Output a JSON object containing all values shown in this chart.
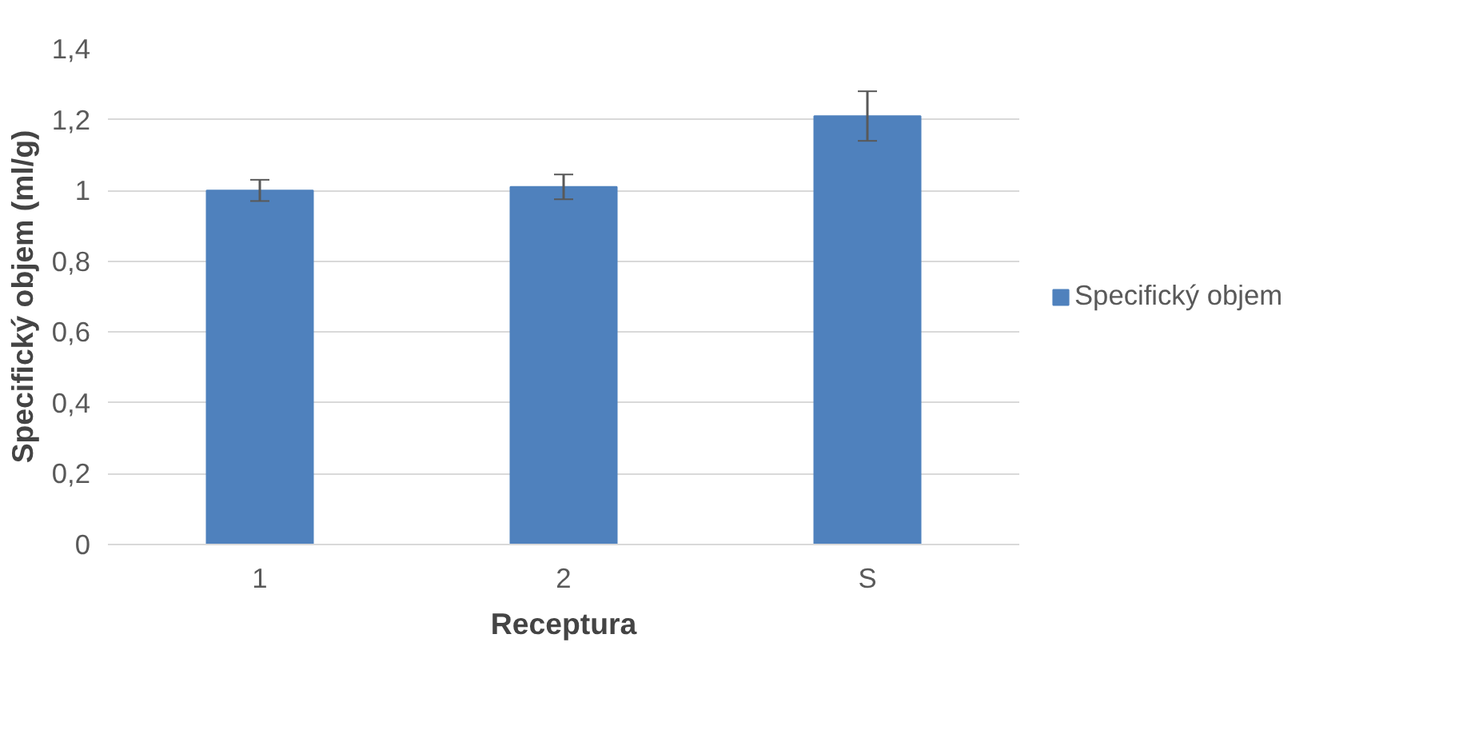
{
  "chart_data": {
    "type": "bar",
    "xlabel": "Receptura",
    "ylabel": "Specifický objem (ml/g)",
    "categories": [
      "1",
      "2",
      "S"
    ],
    "series": [
      {
        "name": "Specifický objem",
        "color": "#4f81bd",
        "values": [
          1.0,
          1.01,
          1.21
        ],
        "errors": [
          0.03,
          0.035,
          0.07
        ]
      }
    ],
    "ylim": [
      0,
      1.4
    ],
    "yticks": [
      {
        "value": 0,
        "label": "0"
      },
      {
        "value": 0.2,
        "label": "0,2"
      },
      {
        "value": 0.4,
        "label": "0,4"
      },
      {
        "value": 0.6,
        "label": "0,6"
      },
      {
        "value": 0.8,
        "label": "0,8"
      },
      {
        "value": 1,
        "label": "1"
      },
      {
        "value": 1.2,
        "label": "1,2"
      },
      {
        "value": 1.4,
        "label": "1,4"
      }
    ],
    "grid": "y",
    "legend": "right"
  }
}
